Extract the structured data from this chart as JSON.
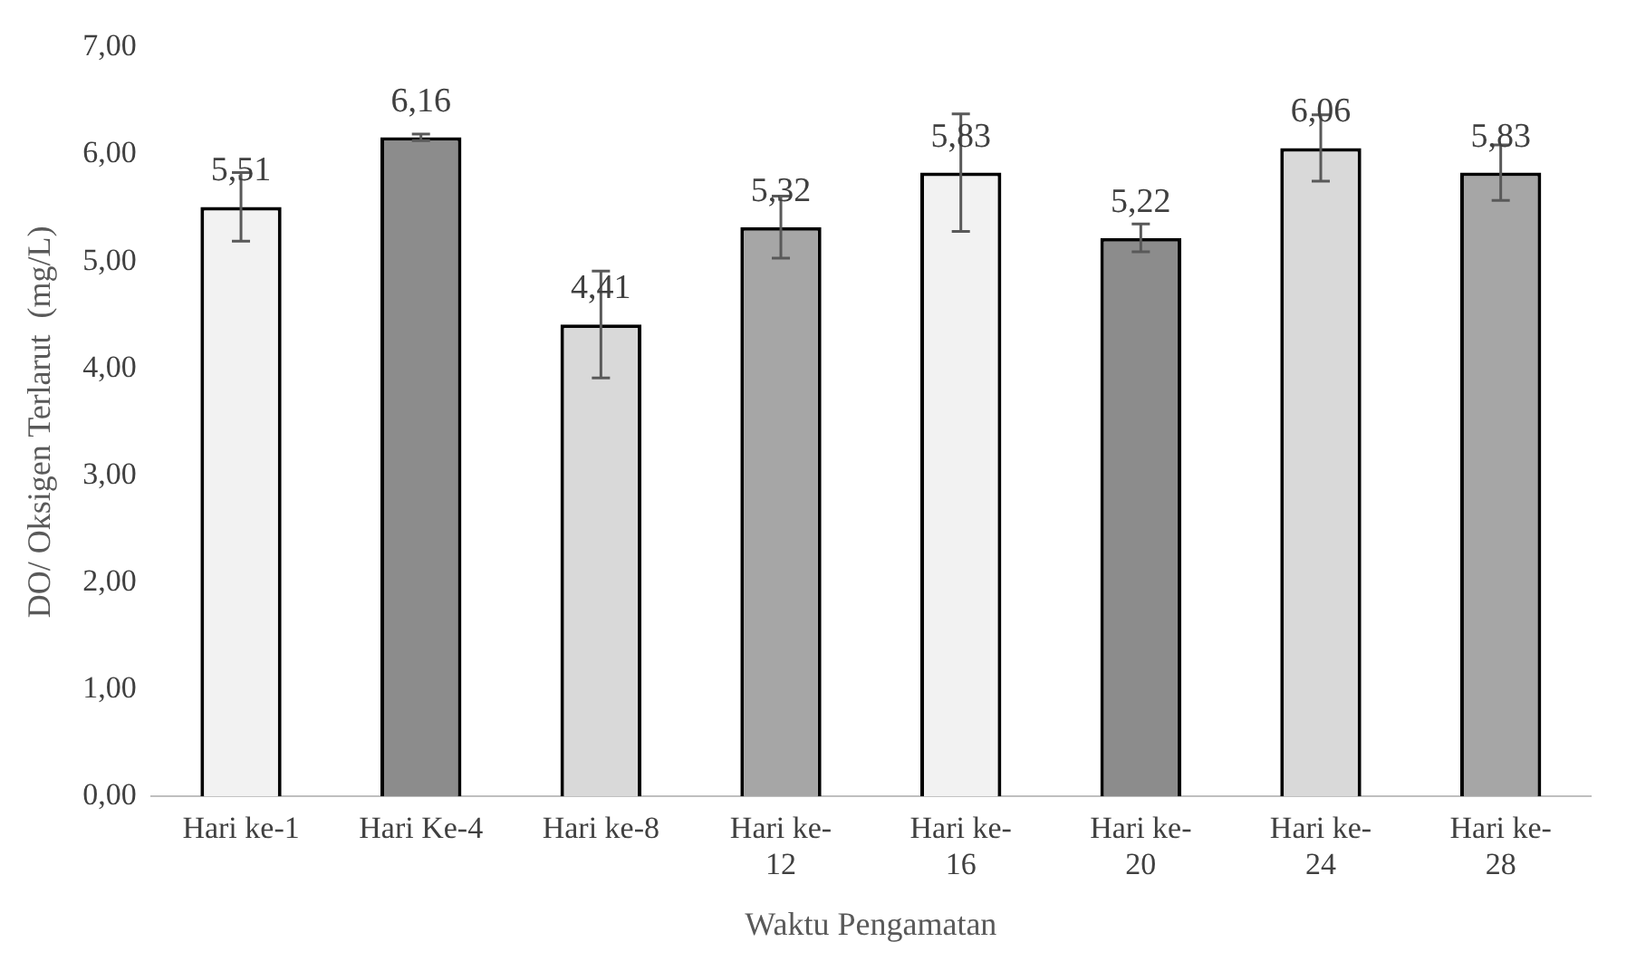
{
  "chart_data": {
    "type": "bar",
    "xlabel": "Waktu Pengamatan",
    "ylabel": "DO/ Oksigen Terlarut  (mg/L)",
    "categories": [
      "Hari ke-1",
      "Hari Ke-4",
      "Hari ke-8",
      "Hari ke-12",
      "Hari ke-16",
      "Hari ke-20",
      "Hari ke-24",
      "Hari ke-28"
    ],
    "values": [
      5.51,
      6.16,
      4.41,
      5.32,
      5.83,
      5.22,
      6.06,
      5.83
    ],
    "colors": [
      "#f2f2f2",
      "#8c8c8c",
      "#d9d9d9",
      "#a6a6a6",
      "#f2f2f2",
      "#8c8c8c",
      "#d9d9d9",
      "#a6a6a6"
    ],
    "errors": [
      0.32,
      0.03,
      0.5,
      0.29,
      0.55,
      0.13,
      0.31,
      0.26
    ],
    "value_labels": [
      "5,51",
      "6,16",
      "4,41",
      "5,32",
      "5,83",
      "5,22",
      "6,06",
      "5,83"
    ],
    "ylim": [
      0,
      7
    ],
    "yticks": [
      {
        "value": 0,
        "label": "0,00"
      },
      {
        "value": 1,
        "label": "1,00"
      },
      {
        "value": 2,
        "label": "2,00"
      },
      {
        "value": 3,
        "label": "3,00"
      },
      {
        "value": 4,
        "label": "4,00"
      },
      {
        "value": 5,
        "label": "5,00"
      },
      {
        "value": 6,
        "label": "6,00"
      },
      {
        "value": 7,
        "label": "7,00"
      }
    ],
    "grid": false,
    "legend": false
  }
}
